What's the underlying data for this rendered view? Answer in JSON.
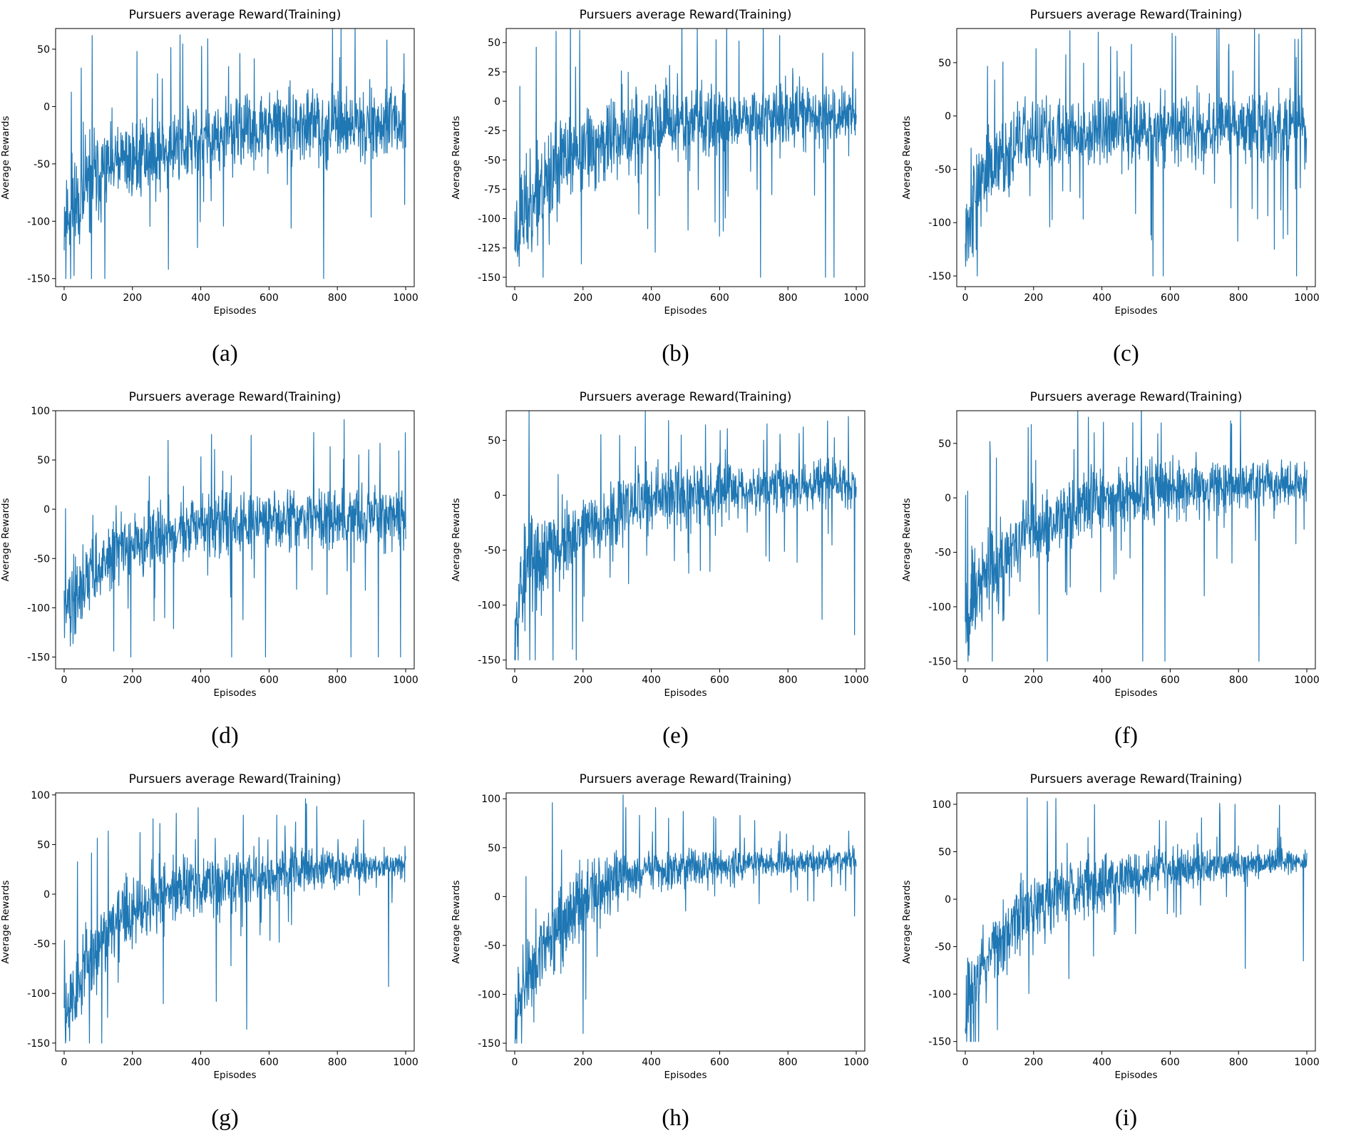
{
  "chart_data": [
    {
      "caption": "(a)",
      "type": "line",
      "title": "Pursuers average Reward(Training)",
      "xlabel": "Episodes",
      "ylabel": "Average Rewards",
      "xlim": [
        -25,
        1025
      ],
      "ylim": [
        -157,
        68
      ],
      "xticks": [
        0,
        200,
        400,
        600,
        800,
        1000
      ],
      "yticks": [
        -150,
        -100,
        -50,
        0,
        50
      ],
      "line_color": "#1f77b4",
      "seed": 11,
      "n_points": 1000,
      "trend": {
        "x": [
          0,
          100,
          200,
          400,
          600,
          800,
          1000
        ],
        "y": [
          -95,
          -58,
          -45,
          -30,
          -18,
          -16,
          -15
        ]
      },
      "noise": {
        "x": [
          0,
          200,
          1000
        ],
        "y": [
          45,
          32,
          26
        ]
      },
      "spikes": [
        {
          "x": 420,
          "y": 59
        },
        {
          "x": 760,
          "y": -150
        },
        {
          "x": 945,
          "y": 58
        },
        {
          "x": 995,
          "y": 46
        },
        {
          "x": 665,
          "y": -106
        },
        {
          "x": 390,
          "y": -123
        },
        {
          "x": 5,
          "y": -150
        }
      ]
    },
    {
      "caption": "(b)",
      "type": "line",
      "title": "Pursuers average Reward(Training)",
      "xlabel": "Episodes",
      "ylabel": "Average Rewards",
      "xlim": [
        -25,
        1025
      ],
      "ylim": [
        -158,
        62
      ],
      "xticks": [
        0,
        200,
        400,
        600,
        800,
        1000
      ],
      "yticks": [
        -150,
        -125,
        -100,
        -75,
        -50,
        -25,
        0,
        25,
        50
      ],
      "line_color": "#1f77b4",
      "seed": 23,
      "n_points": 1000,
      "trend": {
        "x": [
          0,
          50,
          150,
          300,
          500,
          700,
          1000
        ],
        "y": [
          -110,
          -80,
          -50,
          -30,
          -18,
          -14,
          -10
        ]
      },
      "noise": {
        "x": [
          0,
          150,
          1000
        ],
        "y": [
          50,
          35,
          22
        ]
      },
      "spikes": [
        {
          "x": 935,
          "y": 54
        },
        {
          "x": 720,
          "y": -150
        },
        {
          "x": 910,
          "y": -150
        },
        {
          "x": 935,
          "y": -150
        },
        {
          "x": 600,
          "y": -115
        },
        {
          "x": 990,
          "y": 42
        }
      ]
    },
    {
      "caption": "(c)",
      "type": "line",
      "title": "Pursuers average Reward(Training)",
      "xlabel": "Episodes",
      "ylabel": "Average Rewards",
      "xlim": [
        -25,
        1025
      ],
      "ylim": [
        -160,
        82
      ],
      "xticks": [
        0,
        200,
        400,
        600,
        800,
        1000
      ],
      "yticks": [
        -150,
        -100,
        -50,
        0,
        50
      ],
      "line_color": "#1f77b4",
      "seed": 37,
      "n_points": 1000,
      "trend": {
        "x": [
          0,
          50,
          150,
          300,
          600,
          1000
        ],
        "y": [
          -95,
          -60,
          -25,
          -15,
          -12,
          -10
        ]
      },
      "noise": {
        "x": [
          0,
          150,
          1000
        ],
        "y": [
          50,
          30,
          32
        ]
      },
      "spikes": [
        {
          "x": 965,
          "y": 72
        },
        {
          "x": 975,
          "y": 72
        },
        {
          "x": 550,
          "y": -150
        },
        {
          "x": 580,
          "y": -150
        },
        {
          "x": 970,
          "y": -150
        },
        {
          "x": 905,
          "y": -125
        },
        {
          "x": 425,
          "y": 65
        }
      ]
    },
    {
      "caption": "(d)",
      "type": "line",
      "title": "Pursuers average Reward(Training)",
      "xlabel": "Episodes",
      "ylabel": "Average Rewards",
      "xlim": [
        -25,
        1025
      ],
      "ylim": [
        -162,
        100
      ],
      "xticks": [
        0,
        200,
        400,
        600,
        800,
        1000
      ],
      "yticks": [
        -150,
        -100,
        -50,
        0,
        50,
        100
      ],
      "line_color": "#1f77b4",
      "seed": 41,
      "n_points": 1000,
      "trend": {
        "x": [
          0,
          50,
          150,
          300,
          500,
          800,
          1000
        ],
        "y": [
          -110,
          -75,
          -45,
          -25,
          -15,
          -8,
          -8
        ]
      },
      "noise": {
        "x": [
          0,
          150,
          1000
        ],
        "y": [
          40,
          30,
          28
        ]
      },
      "spikes": [
        {
          "x": 820,
          "y": 91
        },
        {
          "x": 490,
          "y": -150
        },
        {
          "x": 590,
          "y": -150
        },
        {
          "x": 840,
          "y": -150
        },
        {
          "x": 920,
          "y": -150
        },
        {
          "x": 985,
          "y": -150
        },
        {
          "x": 195,
          "y": -150
        },
        {
          "x": 925,
          "y": 67
        }
      ]
    },
    {
      "caption": "(e)",
      "type": "line",
      "title": "Pursuers average Reward(Training)",
      "xlabel": "Episodes",
      "ylabel": "Average Rewards",
      "xlim": [
        -25,
        1025
      ],
      "ylim": [
        -158,
        77
      ],
      "xticks": [
        0,
        200,
        400,
        600,
        800,
        1000
      ],
      "yticks": [
        -150,
        -100,
        -50,
        0,
        50
      ],
      "line_color": "#1f77b4",
      "seed": 53,
      "n_points": 1000,
      "trend": {
        "x": [
          0,
          50,
          150,
          300,
          450,
          700,
          1000
        ],
        "y": [
          -95,
          -65,
          -40,
          -15,
          0,
          8,
          10
        ]
      },
      "noise": {
        "x": [
          0,
          150,
          1000
        ],
        "y": [
          50,
          32,
          18
        ]
      },
      "spikes": [
        {
          "x": 450,
          "y": 68
        },
        {
          "x": 900,
          "y": -113
        },
        {
          "x": 995,
          "y": -127
        },
        {
          "x": 180,
          "y": -150
        },
        {
          "x": 10,
          "y": -150
        }
      ]
    },
    {
      "caption": "(f)",
      "type": "line",
      "title": "Pursuers average Reward(Training)",
      "xlabel": "Episodes",
      "ylabel": "Average Rewards",
      "xlim": [
        -25,
        1025
      ],
      "ylim": [
        -157,
        80
      ],
      "xticks": [
        0,
        200,
        400,
        600,
        800,
        1000
      ],
      "yticks": [
        -150,
        -100,
        -50,
        0,
        50
      ],
      "line_color": "#1f77b4",
      "seed": 67,
      "n_points": 1000,
      "trend": {
        "x": [
          0,
          50,
          150,
          300,
          500,
          800,
          1000
        ],
        "y": [
          -105,
          -75,
          -40,
          -10,
          5,
          12,
          15
        ]
      },
      "noise": {
        "x": [
          0,
          150,
          1000
        ],
        "y": [
          45,
          32,
          18
        ]
      },
      "spikes": [
        {
          "x": 360,
          "y": 74
        },
        {
          "x": 520,
          "y": -150
        },
        {
          "x": 585,
          "y": -150
        },
        {
          "x": 860,
          "y": -150
        },
        {
          "x": 780,
          "y": 68
        },
        {
          "x": 240,
          "y": -150
        },
        {
          "x": 700,
          "y": -90
        }
      ]
    },
    {
      "caption": "(g)",
      "type": "line",
      "title": "Pursuers average Reward(Training)",
      "xlabel": "Episodes",
      "ylabel": "Average Rewards",
      "xlim": [
        -25,
        1025
      ],
      "ylim": [
        -158,
        102
      ],
      "xticks": [
        0,
        200,
        400,
        600,
        800,
        1000
      ],
      "yticks": [
        -150,
        -100,
        -50,
        0,
        50,
        100
      ],
      "line_color": "#1f77b4",
      "seed": 79,
      "n_points": 1000,
      "trend": {
        "x": [
          0,
          50,
          150,
          300,
          500,
          700,
          1000
        ],
        "y": [
          -120,
          -80,
          -30,
          0,
          15,
          25,
          30
        ]
      },
      "noise": {
        "x": [
          0,
          150,
          600,
          1000
        ],
        "y": [
          40,
          35,
          25,
          10
        ]
      },
      "spikes": [
        {
          "x": 710,
          "y": 91
        },
        {
          "x": 535,
          "y": -136
        },
        {
          "x": 445,
          "y": -108
        },
        {
          "x": 950,
          "y": -93
        },
        {
          "x": 110,
          "y": -150
        },
        {
          "x": 260,
          "y": 76
        }
      ]
    },
    {
      "caption": "(h)",
      "type": "line",
      "title": "Pursuers average Reward(Training)",
      "xlabel": "Episodes",
      "ylabel": "Average Rewards",
      "xlim": [
        -25,
        1025
      ],
      "ylim": [
        -158,
        106
      ],
      "xticks": [
        0,
        200,
        400,
        600,
        800,
        1000
      ],
      "yticks": [
        -150,
        -100,
        -50,
        0,
        50,
        100
      ],
      "line_color": "#1f77b4",
      "seed": 97,
      "n_points": 1000,
      "trend": {
        "x": [
          0,
          50,
          150,
          300,
          500,
          800,
          1000
        ],
        "y": [
          -115,
          -80,
          -20,
          20,
          30,
          35,
          38
        ]
      },
      "noise": {
        "x": [
          0,
          150,
          400,
          1000
        ],
        "y": [
          40,
          40,
          20,
          10
        ]
      },
      "spikes": [
        {
          "x": 110,
          "y": 96
        },
        {
          "x": 325,
          "y": 91
        },
        {
          "x": 200,
          "y": -140
        },
        {
          "x": 20,
          "y": -150
        },
        {
          "x": 660,
          "y": 83
        },
        {
          "x": 995,
          "y": -20
        }
      ]
    },
    {
      "caption": "(i)",
      "type": "line",
      "title": "Pursuers average Reward(Training)",
      "xlabel": "Episodes",
      "ylabel": "Average Rewards",
      "xlim": [
        -25,
        1025
      ],
      "ylim": [
        -160,
        112
      ],
      "xticks": [
        0,
        200,
        400,
        600,
        800,
        1000
      ],
      "yticks": [
        -150,
        -100,
        -50,
        0,
        50,
        100
      ],
      "line_color": "#1f77b4",
      "seed": 113,
      "n_points": 1000,
      "trend": {
        "x": [
          0,
          50,
          150,
          300,
          550,
          800,
          1000
        ],
        "y": [
          -115,
          -70,
          -20,
          10,
          30,
          38,
          40
        ]
      },
      "noise": {
        "x": [
          0,
          150,
          550,
          1000
        ],
        "y": [
          40,
          38,
          22,
          10
        ]
      },
      "spikes": [
        {
          "x": 745,
          "y": 101
        },
        {
          "x": 790,
          "y": 100
        },
        {
          "x": 920,
          "y": 99
        },
        {
          "x": 820,
          "y": -73
        },
        {
          "x": 990,
          "y": -65
        },
        {
          "x": 30,
          "y": -150
        },
        {
          "x": 375,
          "y": -60
        }
      ]
    }
  ]
}
